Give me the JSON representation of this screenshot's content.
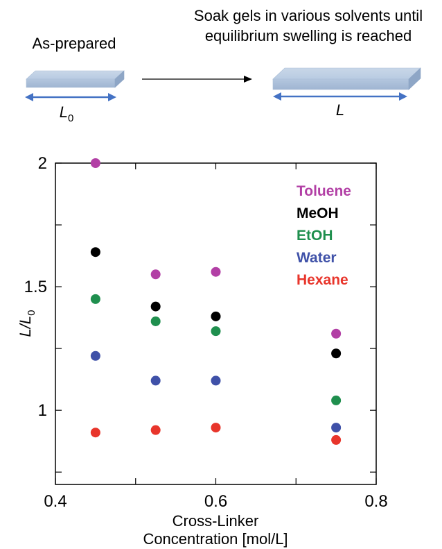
{
  "schematic": {
    "before_label": "As-prepared",
    "after_label_line1": "Soak gels in various solvents until",
    "after_label_line2": "equilibrium swelling is reached",
    "length_before_symbol": "L",
    "length_before_subscript": "0",
    "length_after_symbol": "L"
  },
  "chart_data": {
    "type": "scatter",
    "xlabel_line1": "Cross-Linker",
    "xlabel_line2": "Concentration [mol/L]",
    "ylabel_main": "L/L",
    "ylabel_subscript": "0",
    "xlim": [
      0.4,
      0.8
    ],
    "ylim": [
      0.7,
      2.0
    ],
    "xticks": [
      0.4,
      0.6,
      0.8
    ],
    "xtick_labels": [
      "0.4",
      "0.6",
      "0.8"
    ],
    "yticks": [
      1.0,
      1.5,
      2.0
    ],
    "ytick_labels": [
      "1",
      "1.5",
      "2"
    ],
    "legend_position": "top-right",
    "grid": false,
    "x": [
      0.45,
      0.525,
      0.6,
      0.75
    ],
    "series": [
      {
        "name": "Toluene",
        "color": "#b23fa5",
        "values": [
          2.0,
          1.55,
          1.56,
          1.31
        ]
      },
      {
        "name": "MeOH",
        "color": "#000000",
        "values": [
          1.64,
          1.42,
          1.38,
          1.23
        ]
      },
      {
        "name": "EtOH",
        "color": "#1f8f4e",
        "values": [
          1.45,
          1.36,
          1.32,
          1.04
        ]
      },
      {
        "name": "Water",
        "color": "#3f51a8",
        "values": [
          1.22,
          1.12,
          1.12,
          0.93
        ]
      },
      {
        "name": "Hexane",
        "color": "#e8352b",
        "values": [
          0.91,
          0.92,
          0.93,
          0.88
        ]
      }
    ]
  }
}
